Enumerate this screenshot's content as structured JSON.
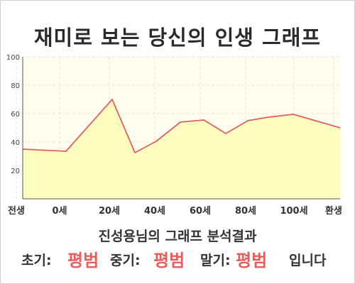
{
  "title": "재미로 보는 당신의 인생 그래프",
  "chart_data": {
    "type": "area",
    "x_tick_labels": [
      "전생",
      "0세",
      "20세",
      "40세",
      "60세",
      "80세",
      "100세",
      "환생"
    ],
    "y_ticks": [
      20,
      40,
      60,
      80,
      100
    ],
    "ylim": [
      0,
      100
    ],
    "grid": true,
    "series": [
      {
        "points": [
          {
            "x": "전생",
            "y": 35
          },
          {
            "x": "",
            "y": 34.5
          },
          {
            "x": "0세",
            "y": 33.5
          },
          {
            "x": "20세",
            "y": 70
          },
          {
            "x": "30세",
            "y": 32.5
          },
          {
            "x": "",
            "y": 40.5
          },
          {
            "x": "50세",
            "y": 54
          },
          {
            "x": "60세",
            "y": 55.5
          },
          {
            "x": "",
            "y": 46
          },
          {
            "x": "80세",
            "y": 55
          },
          {
            "x": "",
            "y": 57.5
          },
          {
            "x": "100세",
            "y": 59.5
          },
          {
            "x": "환생",
            "y": 50
          }
        ]
      }
    ],
    "colors": {
      "line": "#e06060",
      "fill": "#fdfdc0",
      "background": "#fffff0",
      "grid": "#e4e4d0"
    }
  },
  "result": {
    "title": "진성용님의 그래프 분석결과",
    "early_label": "초기:",
    "early_value": "평범",
    "middle_label": "중기:",
    "middle_value": "평범",
    "late_label": "말기:",
    "late_value": "평범",
    "suffix": "입니다"
  }
}
